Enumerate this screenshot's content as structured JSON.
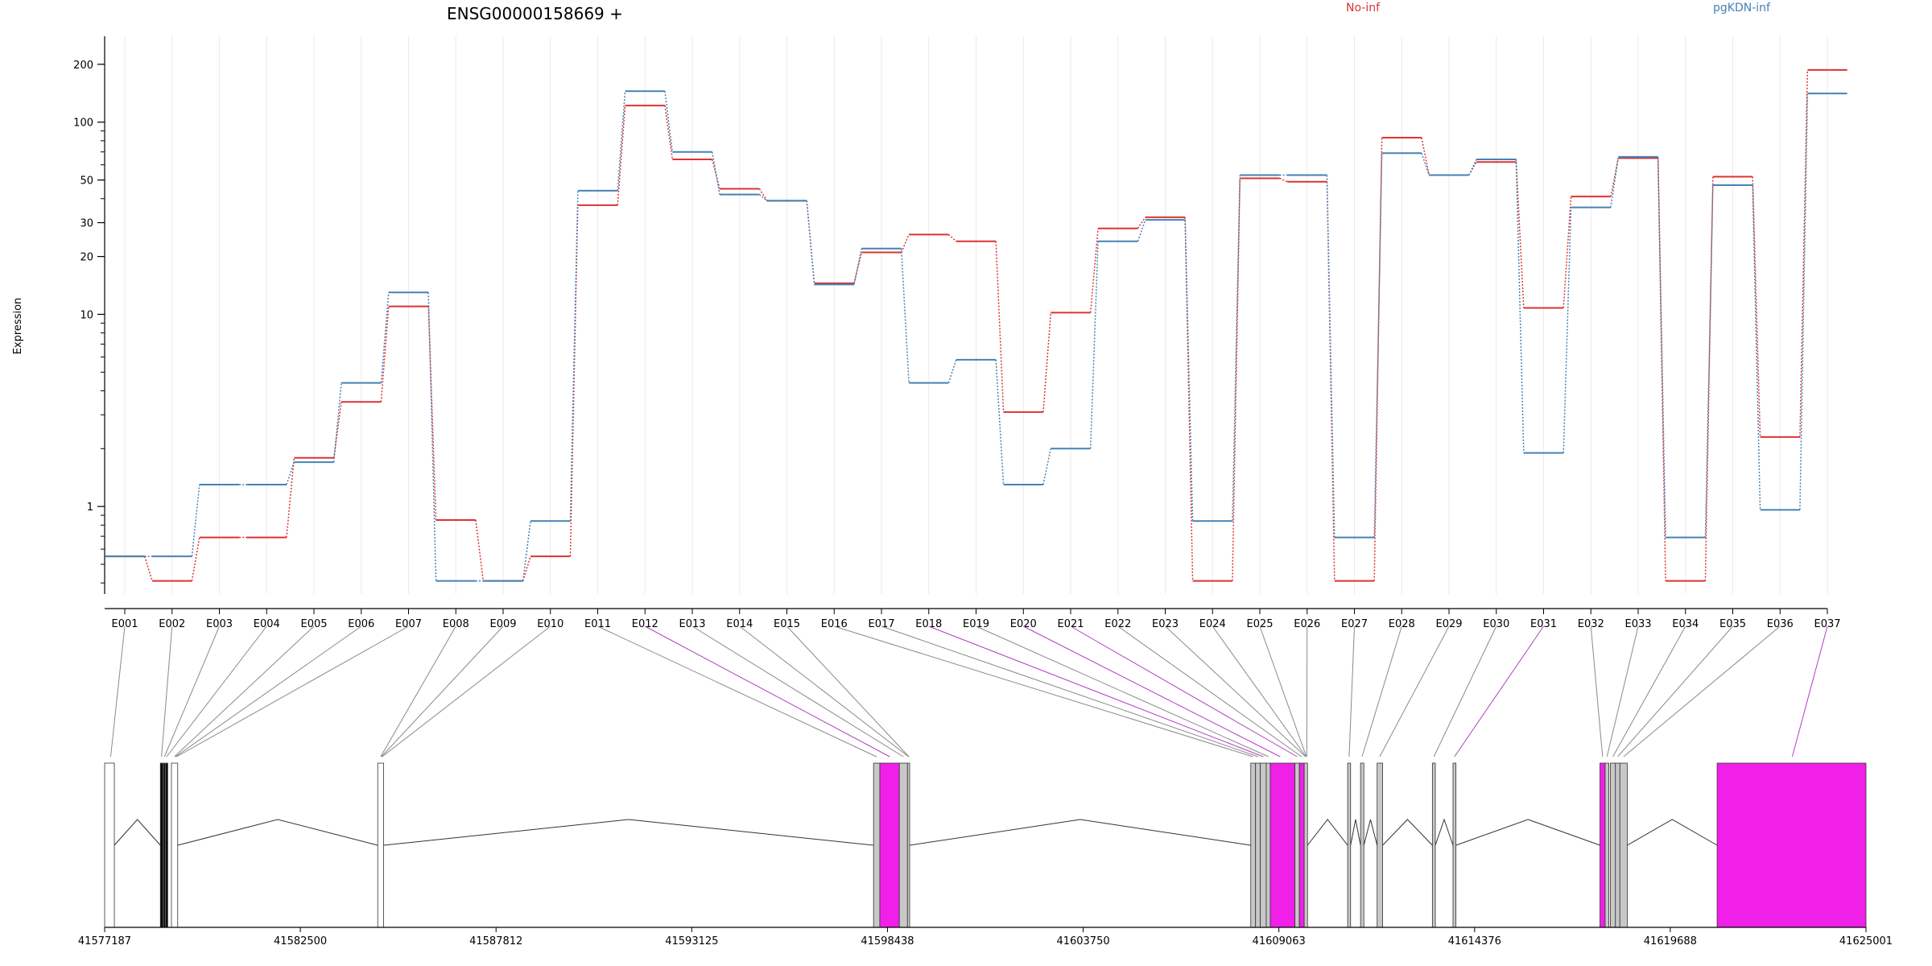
{
  "chart_data": {
    "type": "line",
    "title": "ENSG00000158669 +",
    "ylabel": "Expression",
    "yscale": "log",
    "ylim": [
      0.35,
      280
    ],
    "yticks": [
      "1",
      "10",
      "20",
      "30",
      "50",
      "100",
      "200"
    ],
    "grid": "vertical",
    "legend_placement": "top-right",
    "colors": {
      "No-inf": "#dd3333",
      "pgKDN-inf": "#4682b4",
      "highlight": "#f020e8",
      "exon": "#c8c8c8"
    },
    "categories": [
      "E001",
      "E002",
      "E003",
      "E004",
      "E005",
      "E006",
      "E007",
      "E008",
      "E009",
      "E010",
      "E011",
      "E012",
      "E013",
      "E014",
      "E015",
      "E016",
      "E017",
      "E018",
      "E019",
      "E020",
      "E021",
      "E022",
      "E023",
      "E024",
      "E025",
      "E026",
      "E027",
      "E028",
      "E029",
      "E030",
      "E031",
      "E032",
      "E033",
      "E034",
      "E035",
      "E036",
      "E037"
    ],
    "series": [
      {
        "name": "No-inf",
        "values": [
          0.55,
          0.41,
          0.69,
          0.69,
          1.79,
          3.5,
          11,
          0.85,
          0.41,
          0.55,
          37,
          122,
          64,
          45,
          39,
          14.5,
          21,
          26,
          24,
          3.1,
          10.2,
          28,
          32,
          0.41,
          51,
          49,
          0.41,
          83,
          53,
          62,
          10.8,
          41,
          65,
          0.41,
          52,
          2.3,
          187
        ]
      },
      {
        "name": "pgKDN-inf",
        "values": [
          0.55,
          0.55,
          1.3,
          1.3,
          1.7,
          4.4,
          13,
          0.41,
          0.41,
          0.84,
          44,
          145,
          70,
          42,
          39,
          14.3,
          22,
          4.4,
          5.8,
          1.3,
          2.0,
          24,
          31,
          0.84,
          53,
          53,
          0.69,
          69,
          53,
          64,
          1.9,
          36,
          66,
          0.69,
          47,
          0.96,
          141
        ]
      }
    ],
    "genome": {
      "ticks": [
        "41577187",
        "41582500",
        "41587812",
        "41593125",
        "41598438",
        "41603750",
        "41609063",
        "41614376",
        "41619688",
        "41625001"
      ],
      "range": [
        41577187,
        41625001
      ]
    }
  }
}
